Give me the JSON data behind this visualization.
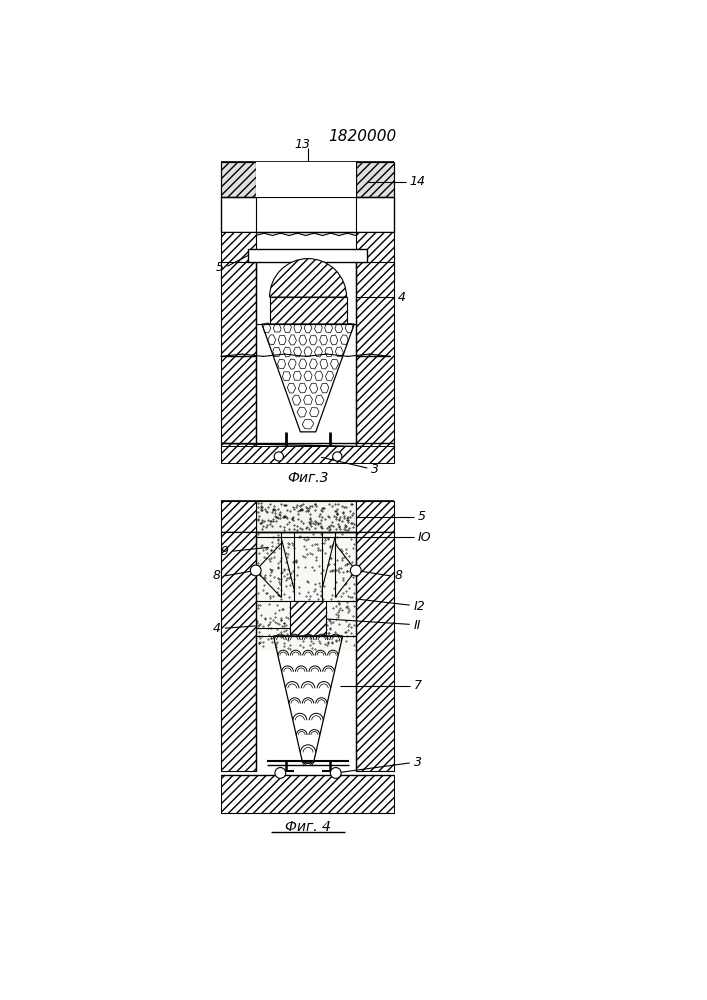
{
  "title": "1820000",
  "fig3_label": "Фиг.3",
  "fig4_label": "Фиг. 4",
  "bg_color": "#ffffff",
  "line_color": "#000000",
  "hatch_color": "#000000"
}
